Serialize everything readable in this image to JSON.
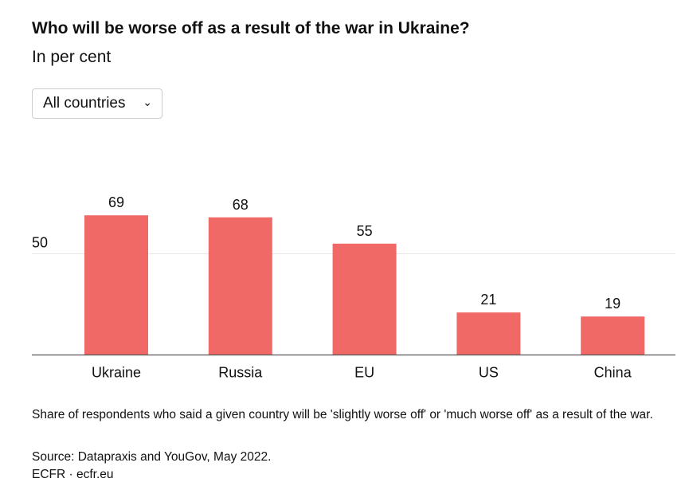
{
  "header": {
    "title": "Who will be worse off as a result of the war in Ukraine?",
    "subtitle": "In per cent"
  },
  "filter": {
    "selected": "All countries",
    "icon": "chevron-down-icon"
  },
  "chart_data": {
    "type": "bar",
    "title": "Who will be worse off as a result of the war in Ukraine?",
    "subtitle": "In per cent",
    "categories": [
      "Ukraine",
      "Russia",
      "EU",
      "US",
      "China"
    ],
    "values": [
      69,
      68,
      55,
      21,
      19
    ],
    "yticks": [
      50
    ],
    "ytick_labels": [
      "50"
    ],
    "ylim": [
      0,
      100
    ],
    "xlabel": "",
    "ylabel": "",
    "color": "#f06966",
    "grid": true
  },
  "footer": {
    "note": "Share of respondents who said a given country will be 'slightly worse off' or 'much worse off' as a result of the war.",
    "source": "Source: Datapraxis and YouGov, May 2022.",
    "brand": "ECFR · ecfr.eu"
  }
}
